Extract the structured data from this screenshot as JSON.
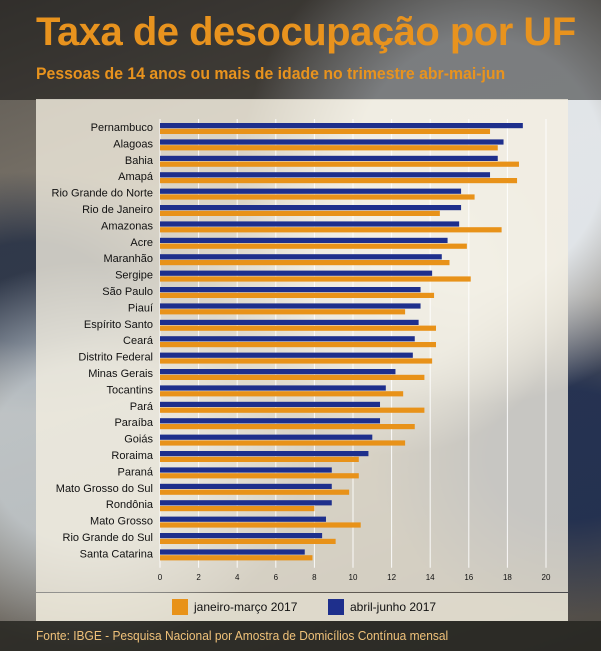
{
  "title": "Taxa de desocupação por UF",
  "subtitle": "Pessoas de 14 anos ou mais de idade no trimestre abr-mai-jun",
  "source": "Fonte: IBGE - Pesquisa Nacional por Amostra de Domicílios Contínua mensal",
  "colors": {
    "jan_mar": "#e89219",
    "abr_jun": "#1e2f8c",
    "title": "#e8931e"
  },
  "chart_data": {
    "type": "bar",
    "orientation": "horizontal",
    "title": "Taxa de desocupação por UF",
    "subtitle": "Pessoas de 14 anos ou mais de idade no trimestre abr-mai-jun",
    "xlabel": "",
    "ylabel": "",
    "xlim": [
      0,
      20
    ],
    "xticks": [
      0,
      2,
      4,
      6,
      8,
      10,
      12,
      14,
      16,
      18,
      20
    ],
    "grid": true,
    "legend": "bottom",
    "categories": [
      "Pernambuco",
      "Alagoas",
      "Bahia",
      "Amapá",
      "Rio Grande do Norte",
      "Rio de Janeiro",
      "Amazonas",
      "Acre",
      "Maranhão",
      "Sergipe",
      "São Paulo",
      "Piauí",
      "Espírito Santo",
      "Ceará",
      "Distrito Federal",
      "Minas Gerais",
      "Tocantins",
      "Pará",
      "Paraíba",
      "Goiás",
      "Roraima",
      "Paraná",
      "Mato Grosso do Sul",
      "Rondônia",
      "Mato Grosso",
      "Rio Grande do Sul",
      "Santa Catarina"
    ],
    "series": [
      {
        "name": "abril-junho 2017",
        "color": "#1e2f8c",
        "values": [
          18.8,
          17.8,
          17.5,
          17.1,
          15.6,
          15.6,
          15.5,
          14.9,
          14.6,
          14.1,
          13.5,
          13.5,
          13.4,
          13.2,
          13.1,
          12.2,
          11.7,
          11.4,
          11.4,
          11.0,
          10.8,
          8.9,
          8.9,
          8.9,
          8.6,
          8.4,
          7.5
        ]
      },
      {
        "name": "janeiro-março 2017",
        "color": "#e89219",
        "values": [
          17.1,
          17.5,
          18.6,
          18.5,
          16.3,
          14.5,
          17.7,
          15.9,
          15.0,
          16.1,
          14.2,
          12.7,
          14.3,
          14.3,
          14.1,
          13.7,
          12.6,
          13.7,
          13.2,
          12.7,
          10.3,
          10.3,
          9.8,
          8.0,
          10.4,
          9.1,
          7.9
        ]
      }
    ]
  },
  "legend": {
    "jan_mar_label": "janeiro-março 2017",
    "abr_jun_label": "abril-junho 2017"
  }
}
